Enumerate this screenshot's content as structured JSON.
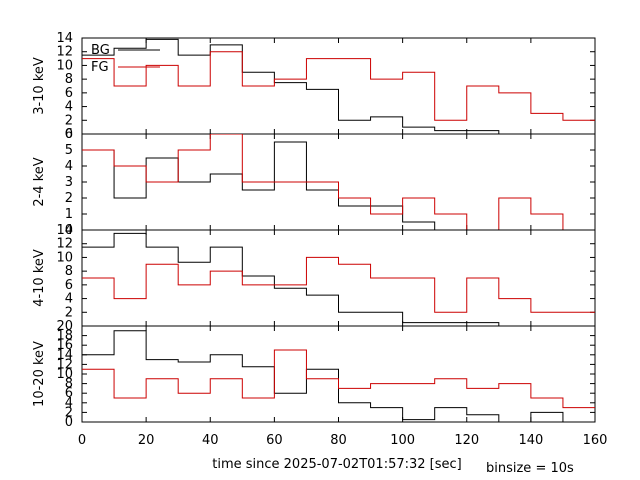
{
  "figure": {
    "xlabel": "time since 2025-07-02T01:57:32 [sec]",
    "annotation": "binsize = 10s",
    "colors": {
      "BG": "#000000",
      "FG": "#cc0000"
    }
  },
  "chart_data": [
    {
      "type": "line",
      "step": true,
      "ylabel": "3-10 keV",
      "xlim": [
        0,
        160
      ],
      "ylim": [
        0,
        14
      ],
      "yticks": [
        0,
        2,
        4,
        6,
        8,
        10,
        12,
        14
      ],
      "xticks": [
        0,
        20,
        40,
        60,
        80,
        100,
        120,
        140,
        160
      ],
      "legend": {
        "position": "top-left",
        "entries": [
          "BG",
          "FG"
        ]
      },
      "bin_edges": [
        0,
        10,
        20,
        30,
        40,
        50,
        60,
        70,
        80,
        90,
        100,
        110,
        120,
        130,
        140,
        150,
        160
      ],
      "series": [
        {
          "name": "BG",
          "values": [
            11.5,
            12.5,
            13.8,
            11.5,
            13.0,
            9.0,
            7.5,
            6.5,
            2.0,
            2.5,
            1.0,
            0.5,
            0.5,
            0,
            0,
            0
          ]
        },
        {
          "name": "FG",
          "values": [
            11.0,
            7.0,
            10.0,
            7.0,
            12.0,
            7.0,
            8.0,
            11.0,
            11.0,
            8.0,
            9.0,
            2.0,
            7.0,
            6.0,
            3.0,
            2.0
          ]
        }
      ]
    },
    {
      "type": "line",
      "step": true,
      "ylabel": "2-4 keV",
      "xlim": [
        0,
        160
      ],
      "ylim": [
        0,
        6
      ],
      "yticks": [
        0,
        1,
        2,
        3,
        4,
        5,
        6
      ],
      "xticks": [
        0,
        20,
        40,
        60,
        80,
        100,
        120,
        140,
        160
      ],
      "bin_edges": [
        0,
        10,
        20,
        30,
        40,
        50,
        60,
        70,
        80,
        90,
        100,
        110,
        120,
        130,
        140,
        150,
        160
      ],
      "series": [
        {
          "name": "BG",
          "values": [
            5.0,
            2.0,
            4.5,
            3.0,
            3.5,
            2.5,
            5.5,
            2.5,
            1.5,
            1.5,
            0.5,
            0,
            0,
            0,
            0,
            0
          ]
        },
        {
          "name": "FG",
          "values": [
            5.0,
            4.0,
            3.0,
            5.0,
            6.0,
            3.0,
            3.0,
            3.0,
            2.0,
            1.0,
            2.0,
            1.0,
            0,
            2.0,
            1.0,
            0
          ]
        }
      ]
    },
    {
      "type": "line",
      "step": true,
      "ylabel": "4-10 keV",
      "xlim": [
        0,
        160
      ],
      "ylim": [
        0,
        14
      ],
      "yticks": [
        2,
        4,
        6,
        8,
        10,
        12,
        14
      ],
      "xticks": [
        0,
        20,
        40,
        60,
        80,
        100,
        120,
        140,
        160
      ],
      "bin_edges": [
        0,
        10,
        20,
        30,
        40,
        50,
        60,
        70,
        80,
        90,
        100,
        110,
        120,
        130,
        140,
        150,
        160
      ],
      "series": [
        {
          "name": "BG",
          "values": [
            11.5,
            13.5,
            11.5,
            9.3,
            11.5,
            7.3,
            5.5,
            4.5,
            2.0,
            2.0,
            0.5,
            0.5,
            0.5,
            0,
            0,
            0
          ]
        },
        {
          "name": "FG",
          "values": [
            7.0,
            4.0,
            9.0,
            6.0,
            8.0,
            6.0,
            6.0,
            10.0,
            9.0,
            7.0,
            7.0,
            2.0,
            7.0,
            4.0,
            2.0,
            2.0
          ]
        }
      ]
    },
    {
      "type": "line",
      "step": true,
      "ylabel": "10-20 keV",
      "xlim": [
        0,
        160
      ],
      "ylim": [
        0,
        20
      ],
      "yticks": [
        0,
        2,
        4,
        6,
        8,
        10,
        12,
        14,
        16,
        18,
        20
      ],
      "xticks": [
        0,
        20,
        40,
        60,
        80,
        100,
        120,
        140,
        160
      ],
      "bin_edges": [
        0,
        10,
        20,
        30,
        40,
        50,
        60,
        70,
        80,
        90,
        100,
        110,
        120,
        130,
        140,
        150,
        160
      ],
      "series": [
        {
          "name": "BG",
          "values": [
            14.0,
            19.0,
            13.0,
            12.5,
            14.0,
            11.5,
            6.0,
            11.0,
            4.0,
            3.0,
            0.5,
            3.0,
            1.5,
            0,
            2.0,
            0
          ]
        },
        {
          "name": "FG",
          "values": [
            11.0,
            5.0,
            9.0,
            6.0,
            9.0,
            5.0,
            15.0,
            9.0,
            7.0,
            8.0,
            8.0,
            9.0,
            7.0,
            8.0,
            5.0,
            3.0
          ]
        }
      ]
    }
  ]
}
